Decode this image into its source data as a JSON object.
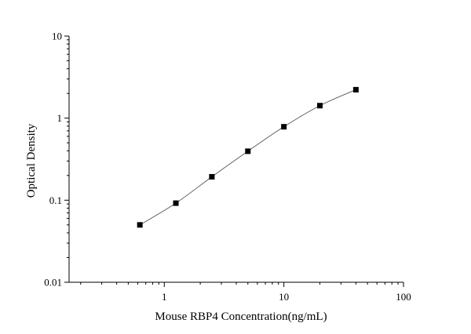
{
  "chart_data": {
    "type": "scatter",
    "title": "",
    "xlabel": "Mouse RBP4 Concentration(ng/mL)",
    "ylabel": "Optical Density",
    "xscale": "log",
    "yscale": "log",
    "xlim": [
      0.16,
      100
    ],
    "ylim": [
      0.01,
      10
    ],
    "x_ticks": [
      {
        "value": 1,
        "label": "1"
      },
      {
        "value": 10,
        "label": "10"
      },
      {
        "value": 100,
        "label": "100"
      }
    ],
    "y_ticks": [
      {
        "value": 0.01,
        "label": "0.01"
      },
      {
        "value": 0.1,
        "label": "0.1"
      },
      {
        "value": 1,
        "label": "1"
      },
      {
        "value": 10,
        "label": "10"
      }
    ],
    "grid": false,
    "legend": "none",
    "marker": "square",
    "marker_color": "#000000",
    "curve_color": "#555555",
    "fit": "smooth standard curve through points",
    "series": [
      {
        "x": [
          0.625,
          1.25,
          2.5,
          5,
          10,
          20,
          40
        ],
        "y": [
          0.05,
          0.092,
          0.193,
          0.395,
          0.785,
          1.42,
          2.22
        ]
      }
    ]
  }
}
